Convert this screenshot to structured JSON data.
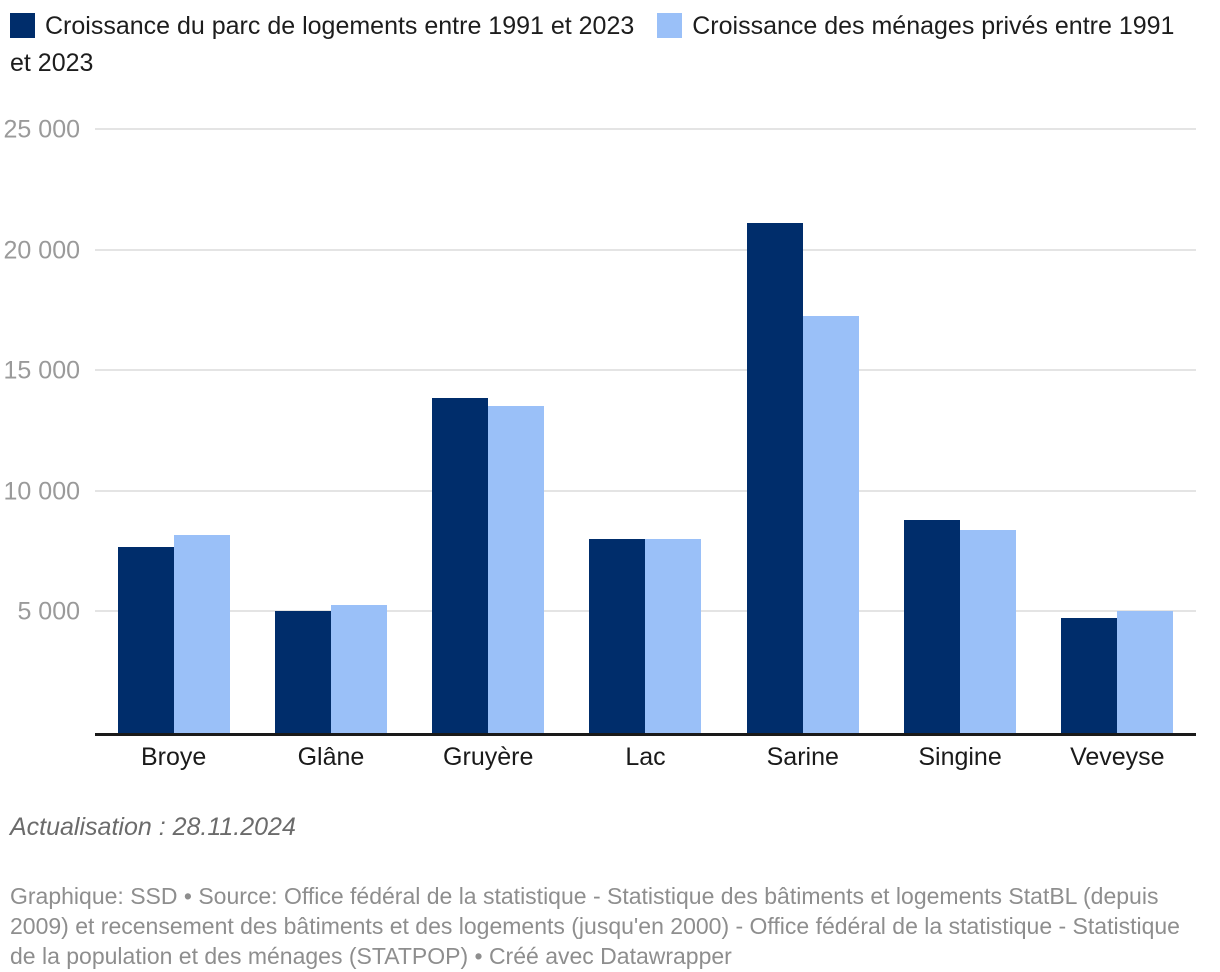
{
  "legend": {
    "items": [
      {
        "label": "Croissance du parc de logements entre 1991 et 2023",
        "color": "#002d6b"
      },
      {
        "label": "Croissance des ménages privés entre 1991 et 2023",
        "color": "#9ac0f8"
      }
    ]
  },
  "chart_data": {
    "type": "bar",
    "categories": [
      "Broye",
      "Glâne",
      "Gruyère",
      "Lac",
      "Sarine",
      "Singine",
      "Veveyse"
    ],
    "series": [
      {
        "name": "Croissance du parc de logements entre 1991 et 2023",
        "color": "#002d6b",
        "values": [
          7700,
          5050,
          13900,
          8050,
          21150,
          8850,
          4750
        ]
      },
      {
        "name": "Croissance des ménages privés entre 1991 et 2023",
        "color": "#9ac0f8",
        "values": [
          8200,
          5300,
          13550,
          8050,
          17300,
          8400,
          5050
        ]
      }
    ],
    "ylim": [
      0,
      25000
    ],
    "yticks": [
      {
        "value": 5000,
        "label": "5 000"
      },
      {
        "value": 10000,
        "label": "10 000"
      },
      {
        "value": 15000,
        "label": "15 000"
      },
      {
        "value": 20000,
        "label": "20 000"
      },
      {
        "value": 25000,
        "label": "25 000"
      }
    ],
    "grid": true,
    "legend_position": "top-left",
    "colors": {
      "grid": "#e4e4e4",
      "axis_line": "#1a1a1a",
      "tick_label": "#9a9a9a",
      "category_label": "#1a1a1a"
    }
  },
  "footer": {
    "update_note": "Actualisation : 28.11.2024",
    "attribution": "Graphique: SSD • Source: Office fédéral de la statistique - Statistique des bâtiments et logements StatBL (depuis 2009) et recensement des bâtiments et des logements (jusqu'en 2000) - Office fédéral de la statistique - Statistique de la population et des ménages (STATPOP) • Créé avec Datawrapper"
  }
}
